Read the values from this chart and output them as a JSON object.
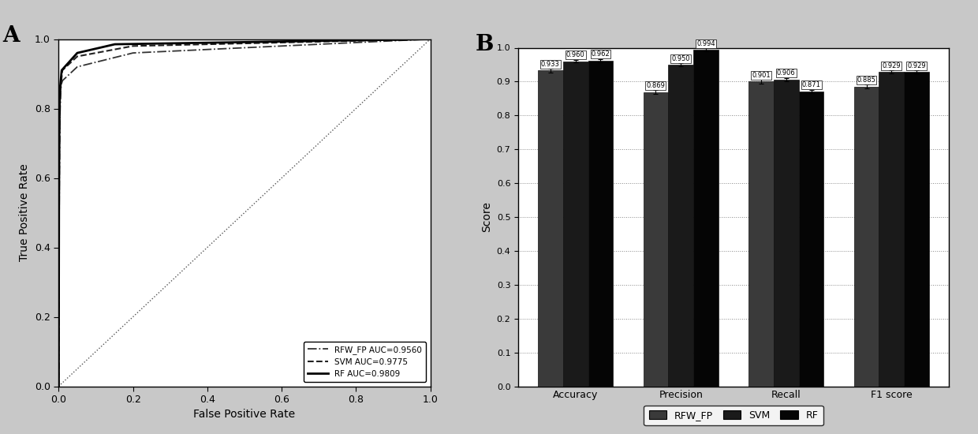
{
  "panel_a_label": "A",
  "panel_b_label": "B",
  "roc_legend": [
    {
      "label": "RFW_FP AUC=0.9560",
      "style": "dashdot"
    },
    {
      "label": "SVM AUC=0.9775",
      "style": "dashed"
    },
    {
      "label": "RF AUC=0.9809",
      "style": "solid"
    }
  ],
  "bar_categories": [
    "Accuracy",
    "Precision",
    "Recall",
    "F1 score"
  ],
  "bar_groups": [
    "RFW_FP",
    "SVM",
    "RF"
  ],
  "bar_values": [
    [
      0.933,
      0.96,
      0.962
    ],
    [
      0.869,
      0.95,
      0.994
    ],
    [
      0.901,
      0.906,
      0.871
    ],
    [
      0.885,
      0.929,
      0.929
    ]
  ],
  "bar_errors": [
    [
      0.006,
      0.004,
      0.004
    ],
    [
      0.006,
      0.004,
      0.004
    ],
    [
      0.006,
      0.004,
      0.004
    ],
    [
      0.006,
      0.004,
      0.004
    ]
  ],
  "bar_colors": [
    "#3a3a3a",
    "#1a1a1a",
    "#050505"
  ],
  "ylabel_bar": "Score",
  "ylim_bar": [
    0.0,
    1.0
  ],
  "yticks_bar": [
    0.0,
    0.1,
    0.2,
    0.3,
    0.4,
    0.5,
    0.6,
    0.7,
    0.8,
    0.9,
    1.0
  ],
  "xlabel_roc": "False Positive Rate",
  "ylabel_roc": "True Positive Rate",
  "background_color": "#c8c8c8",
  "plot_bg_color": "#ffffff",
  "bar_bg_color": "#ffffff",
  "xticks_roc": [
    0.0,
    0.2,
    0.4,
    0.6,
    0.8,
    1.0
  ],
  "yticks_roc": [
    0.0,
    0.2,
    0.4,
    0.6,
    0.8,
    1.0
  ]
}
